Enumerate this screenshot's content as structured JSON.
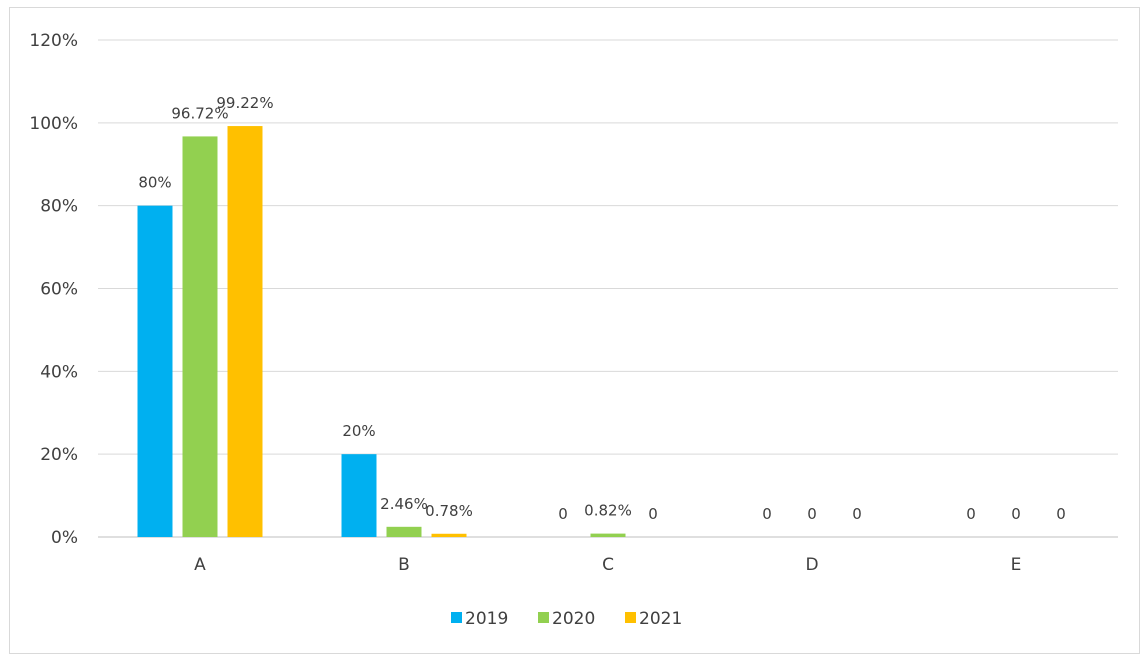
{
  "chart_data": {
    "type": "bar",
    "categories": [
      "A",
      "B",
      "C",
      "D",
      "E"
    ],
    "series": [
      {
        "name": "2019",
        "color": "#00b0f0",
        "values": [
          80,
          20,
          0,
          0,
          0
        ],
        "labels": [
          "80%",
          "20%",
          "0",
          "0",
          "0"
        ]
      },
      {
        "name": "2020",
        "color": "#92d050",
        "values": [
          96.72,
          2.46,
          0.82,
          0,
          0
        ],
        "labels": [
          "96.72%",
          "2.46%",
          "0.82%",
          "0",
          "0"
        ]
      },
      {
        "name": "2021",
        "color": "#ffc000",
        "values": [
          99.22,
          0.78,
          0,
          0,
          0
        ],
        "labels": [
          "99.22%",
          "0.78%",
          "0",
          "0",
          "0"
        ]
      }
    ],
    "ylim": [
      0,
      120
    ],
    "yticks": [
      0,
      20,
      40,
      60,
      80,
      100,
      120
    ],
    "ytick_labels": [
      "0%",
      "20%",
      "40%",
      "60%",
      "80%",
      "100%",
      "120%"
    ],
    "grid": true,
    "legend_position": "bottom"
  }
}
